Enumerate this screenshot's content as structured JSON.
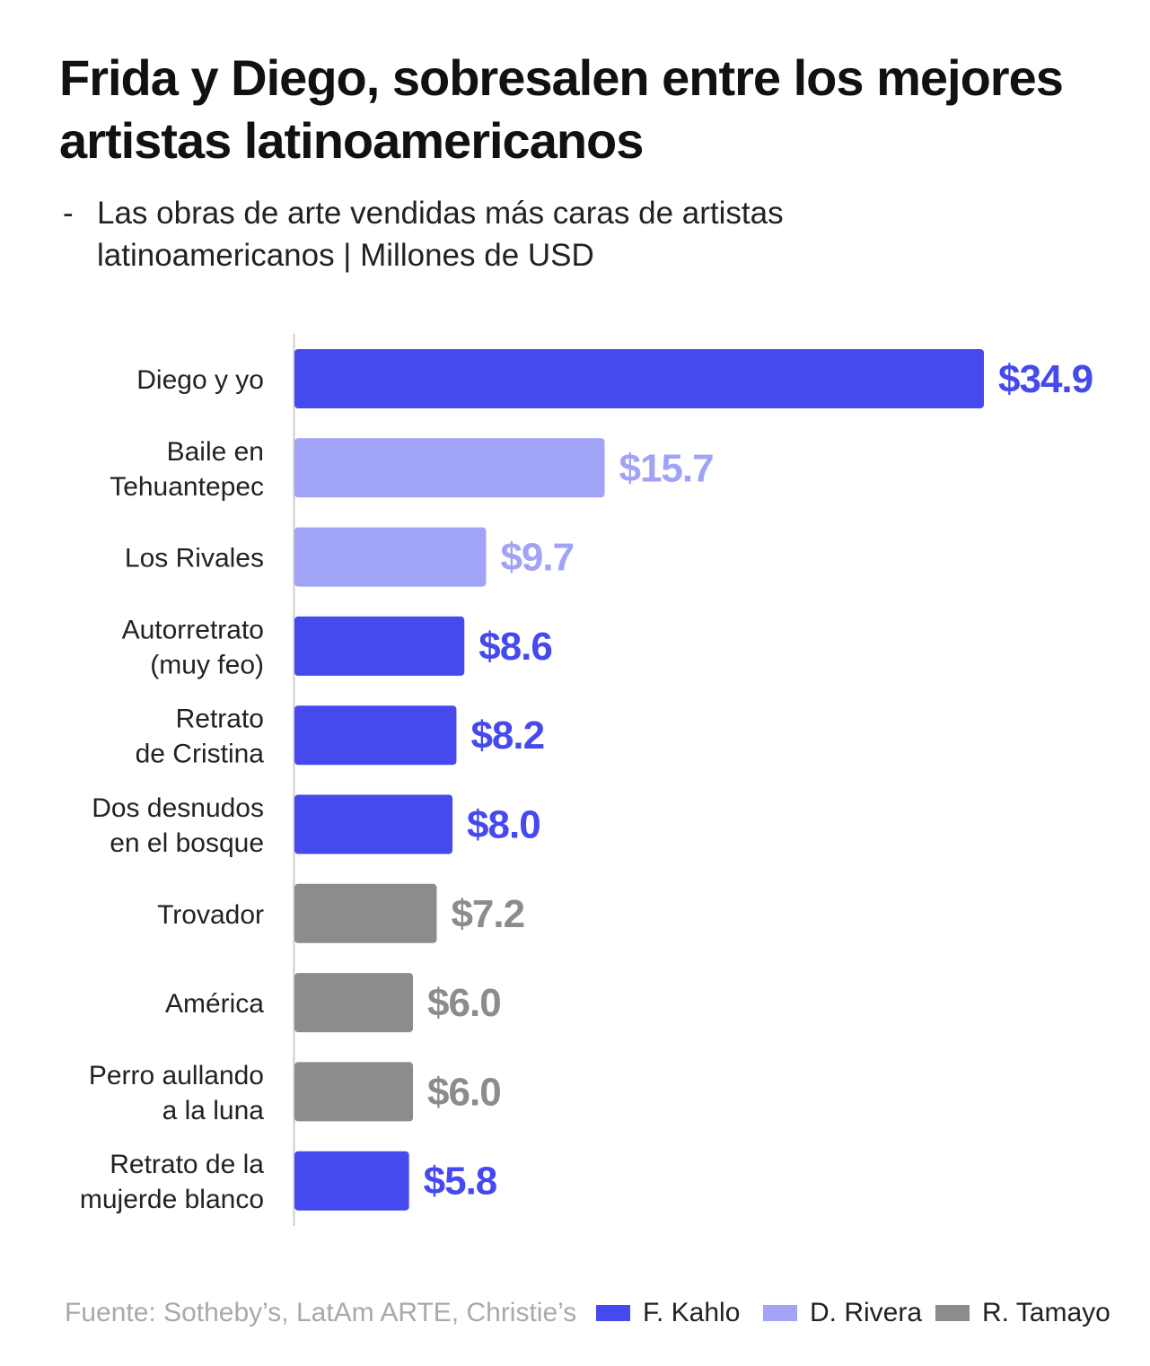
{
  "title": "Frida y Diego, sobresalen entre los mejores artistas latinoamericanos",
  "subtitle": {
    "dash": "-",
    "text": "Las obras de arte vendidas más caras de artistas latinoamericanos | Millones de USD"
  },
  "source": "Fuente: Sotheby’s, LatAm ARTE, Christie’s",
  "colors": {
    "kahlo": "#4549ee",
    "rivera": "#a1a3f6",
    "tamayo": "#8c8c8c",
    "axis": "#cccccc"
  },
  "legend": [
    {
      "label": "F. Kahlo",
      "color": "#4549ee"
    },
    {
      "label": "D. Rivera",
      "color": "#a1a3f6"
    },
    {
      "label": "R. Tamayo",
      "color": "#8c8c8c"
    }
  ],
  "chart_data": {
    "type": "bar",
    "orientation": "horizontal",
    "categories": [
      [
        "Diego y yo"
      ],
      [
        "Baile en",
        "Tehuantepec"
      ],
      [
        "Los Rivales"
      ],
      [
        "Autorretrato",
        "(muy feo)"
      ],
      [
        "Retrato",
        "de Cristina"
      ],
      [
        "Dos desnudos",
        "en el bosque"
      ],
      [
        "Trovador"
      ],
      [
        "América"
      ],
      [
        "Perro aullando",
        "a la luna"
      ],
      [
        "Retrato de la",
        "mujerde blanco"
      ]
    ],
    "values": [
      34.9,
      15.7,
      9.7,
      8.6,
      8.2,
      8.0,
      7.2,
      6.0,
      6.0,
      5.8
    ],
    "value_labels": [
      "$34.9",
      "$15.7",
      "$9.7",
      "$8.6",
      "$8.2",
      "$8.0",
      "$7.2",
      "$6.0",
      "$6.0",
      "$5.8"
    ],
    "artists": [
      "F. Kahlo",
      "D. Rivera",
      "D. Rivera",
      "F. Kahlo",
      "F. Kahlo",
      "F. Kahlo",
      "R. Tamayo",
      "R. Tamayo",
      "R. Tamayo",
      "F. Kahlo"
    ],
    "xlim": [
      0,
      34.9
    ],
    "grid": false,
    "legend_position": "bottom-right"
  }
}
